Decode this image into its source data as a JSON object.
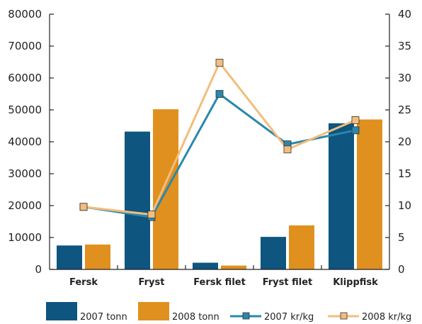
{
  "chart_data": {
    "type": "bar",
    "categories": [
      "Fersk",
      "Fryst",
      "Fersk filet",
      "Fryst filet",
      "Klippfisk"
    ],
    "series": [
      {
        "name": "2007 tonn",
        "kind": "bar",
        "axis": "left",
        "color": "#0e5580",
        "values": [
          7500,
          43200,
          2100,
          10200,
          45800
        ]
      },
      {
        "name": "2008 tonn",
        "kind": "bar",
        "axis": "left",
        "color": "#e0901e",
        "values": [
          7800,
          50200,
          1200,
          13800,
          47000
        ]
      },
      {
        "name": "2007 kr/kg",
        "kind": "line",
        "axis": "right",
        "color": "#2b87ad",
        "marker": "square",
        "values": [
          9.8,
          8.2,
          27.5,
          19.6,
          21.8
        ]
      },
      {
        "name": "2008 kr/kg",
        "kind": "line",
        "axis": "right",
        "color": "#f3bd7c",
        "marker": "square",
        "values": [
          9.8,
          8.6,
          32.4,
          18.8,
          23.4
        ]
      }
    ],
    "left_axis": {
      "ylim": [
        0,
        80000
      ],
      "ticks": [
        "0",
        "10000",
        "20000",
        "30000",
        "40000",
        "50000",
        "60000",
        "70000",
        "80000"
      ]
    },
    "right_axis": {
      "ylim": [
        0,
        40
      ],
      "ticks": [
        "0",
        "5",
        "10",
        "15",
        "20",
        "25",
        "30",
        "35",
        "40"
      ]
    },
    "title": "",
    "xlabel": "",
    "ylabel": "",
    "grid": false,
    "legend": "bottom"
  }
}
